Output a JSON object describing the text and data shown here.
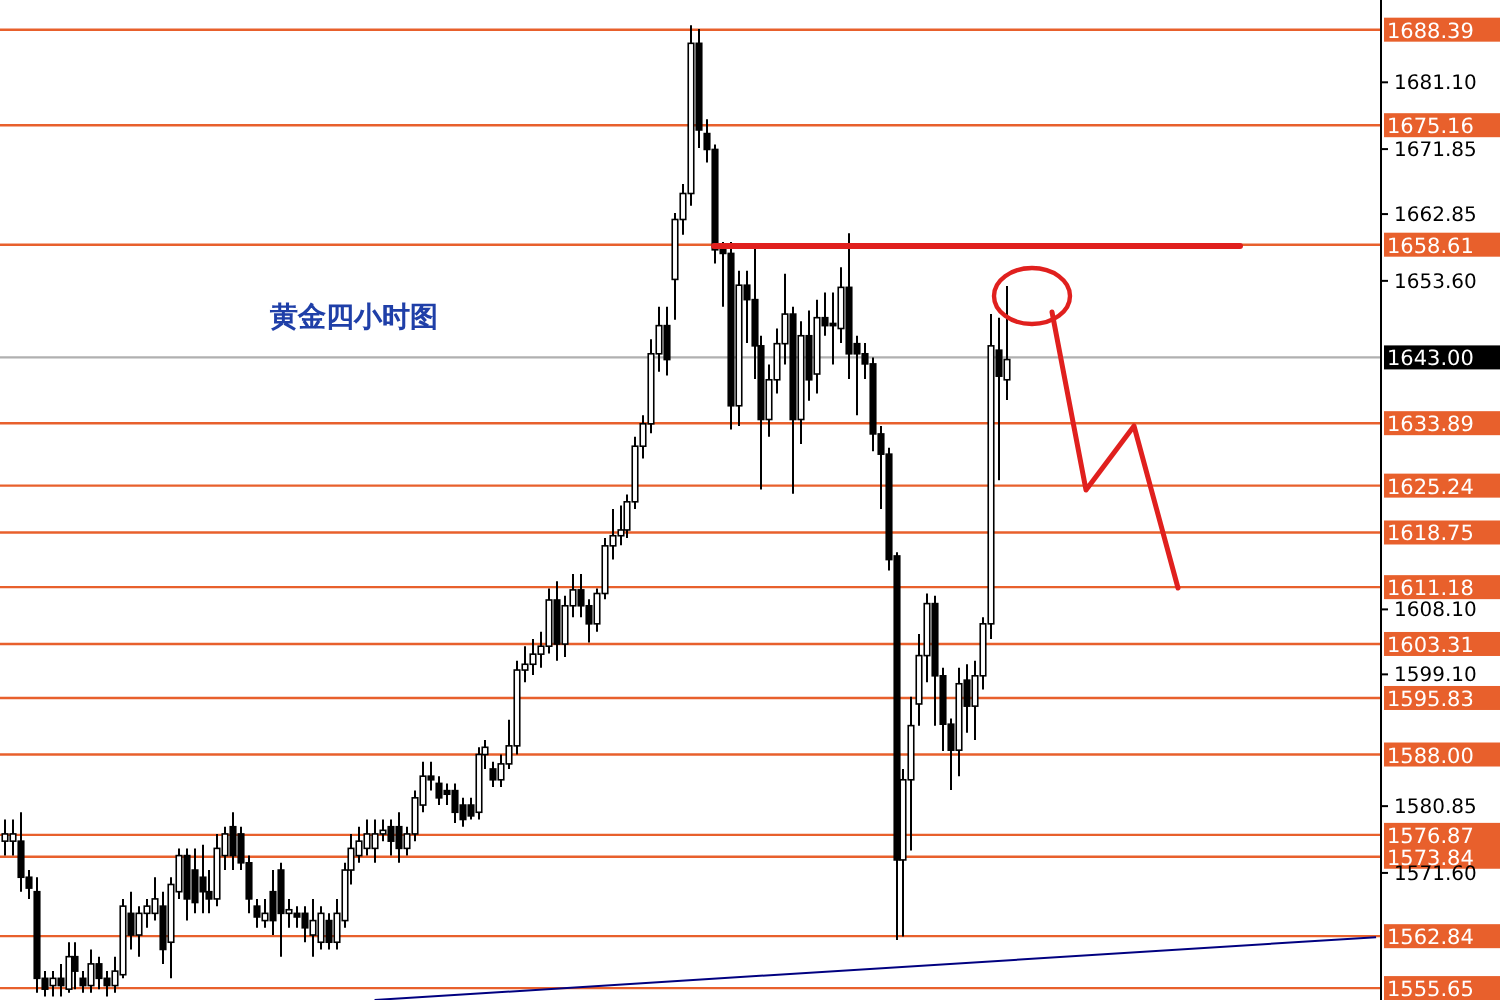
{
  "chart_data": {
    "type": "candlestick",
    "title": "黄金四小时图",
    "color": "#000000",
    "tick_labels": "y",
    "categories": [
      null,
      null,
      null,
      null,
      null,
      null,
      null,
      null,
      null,
      null,
      null,
      null,
      null,
      null,
      null,
      null,
      null,
      null,
      null,
      null,
      null,
      null,
      null,
      null,
      null,
      null,
      null,
      null,
      null,
      null,
      null,
      null,
      null,
      null,
      null,
      null,
      null,
      null,
      null,
      null,
      null,
      null,
      null,
      null,
      null,
      null,
      null,
      null,
      null,
      null,
      null,
      null,
      null,
      null,
      null,
      null,
      null,
      null,
      null,
      null,
      null,
      null,
      null,
      null,
      null,
      null,
      null,
      null,
      null,
      null,
      null,
      null,
      null,
      null,
      null,
      null,
      null,
      null,
      null,
      null,
      null,
      null,
      null,
      null,
      null,
      null,
      null,
      null,
      null,
      null,
      null,
      null,
      null,
      null,
      null,
      null,
      null,
      null,
      null,
      null,
      null,
      null,
      null,
      null,
      null,
      null,
      null,
      null,
      null,
      null,
      null,
      null,
      null,
      null,
      null,
      null,
      null,
      null,
      null,
      null,
      null,
      null,
      null,
      null,
      null,
      null,
      null,
      null,
      null,
      null,
      null,
      null,
      null,
      null,
      null,
      null,
      null,
      null,
      null,
      null,
      null,
      null,
      null,
      null,
      null,
      null,
      null,
      null,
      null,
      null,
      null,
      null,
      null,
      null,
      null,
      null,
      null,
      null,
      null,
      null,
      null,
      null,
      null,
      null,
      null,
      null,
      null,
      null,
      null,
      null,
      null,
      null,
      null,
      null,
      null
    ],
    "ohlc": [
      [
        1576,
        1579,
        1574,
        1577
      ],
      [
        1576,
        1579,
        1574,
        1577
      ],
      [
        1576,
        1580,
        1569,
        1571
      ],
      [
        1571,
        1572,
        1568,
        1569.5
      ],
      [
        1569,
        1571,
        1555,
        1557
      ],
      [
        1557,
        1558,
        1554.5,
        1555.5
      ],
      [
        1556,
        1558,
        1554.5,
        1557
      ],
      [
        1557,
        1559,
        1554.5,
        1556
      ],
      [
        1555.5,
        1562,
        1555,
        1560
      ],
      [
        1560,
        1562,
        1555.5,
        1558
      ],
      [
        1557,
        1558,
        1555,
        1556
      ],
      [
        1556,
        1561,
        1555,
        1559
      ],
      [
        1559,
        1560,
        1555.5,
        1557
      ],
      [
        1557,
        1558,
        1554.5,
        1556
      ],
      [
        1556,
        1560,
        1555,
        1558
      ],
      [
        1557.5,
        1568,
        1557,
        1567
      ],
      [
        1566,
        1569,
        1561,
        1563
      ],
      [
        1563,
        1567,
        1560,
        1566
      ],
      [
        1566,
        1568,
        1564,
        1567
      ],
      [
        1566,
        1571,
        1565,
        1568
      ],
      [
        1567,
        1569,
        1559,
        1561
      ],
      [
        1562,
        1571,
        1557,
        1570
      ],
      [
        1569,
        1575,
        1568,
        1574
      ],
      [
        1574,
        1575,
        1565,
        1568
      ],
      [
        1572,
        1575,
        1566,
        1567.5
      ],
      [
        1571,
        1575.5,
        1566,
        1569
      ],
      [
        1569,
        1572,
        1566,
        1568
      ],
      [
        1568,
        1577,
        1567,
        1575
      ],
      [
        1574,
        1578,
        1572,
        1577
      ],
      [
        1578,
        1580,
        1572,
        1574
      ],
      [
        1577,
        1578,
        1572,
        1573
      ],
      [
        1573,
        1574,
        1566,
        1568
      ],
      [
        1567,
        1568,
        1564,
        1565.5
      ],
      [
        1565,
        1568,
        1564,
        1566
      ],
      [
        1569,
        1572,
        1563,
        1565
      ],
      [
        1572,
        1573,
        1560,
        1566
      ],
      [
        1566,
        1568,
        1564,
        1566.5
      ],
      [
        1566,
        1567,
        1564,
        1565.5
      ],
      [
        1566,
        1567,
        1562,
        1564
      ],
      [
        1563,
        1568,
        1560,
        1565
      ],
      [
        1562,
        1567,
        1561,
        1566
      ],
      [
        1565,
        1566,
        1561,
        1562
      ],
      [
        1562,
        1568,
        1561,
        1566
      ],
      [
        1565,
        1573,
        1564,
        1572
      ],
      [
        1572,
        1577,
        1570,
        1575
      ],
      [
        1574,
        1578,
        1573,
        1576
      ],
      [
        1575,
        1579,
        1574,
        1577
      ],
      [
        1575,
        1579,
        1573,
        1577
      ],
      [
        1577,
        1579,
        1576,
        1577.5
      ],
      [
        1578,
        1579,
        1574,
        1576
      ],
      [
        1578,
        1580,
        1573,
        1575
      ],
      [
        1575,
        1578,
        1574,
        1577
      ],
      [
        1577,
        1583,
        1576,
        1582
      ],
      [
        1581,
        1587,
        1580,
        1585
      ],
      [
        1585,
        1587,
        1583,
        1584.5
      ],
      [
        1584,
        1585,
        1581,
        1582
      ],
      [
        1583,
        1584,
        1581,
        1582.5
      ],
      [
        1583,
        1584,
        1578.5,
        1580
      ],
      [
        1581,
        1582,
        1578,
        1579
      ],
      [
        1581,
        1582,
        1579,
        1579.5
      ],
      [
        1580,
        1589,
        1579,
        1588
      ],
      [
        1588,
        1590,
        1586,
        1589
      ],
      [
        1586,
        1587,
        1583.5,
        1584.5
      ],
      [
        1584.5,
        1588,
        1583.5,
        1586.7
      ],
      [
        1586.7,
        1592.8,
        1586,
        1589.2
      ],
      [
        1589.2,
        1601,
        1588,
        1599.7
      ],
      [
        1599.7,
        1603,
        1598,
        1600.5
      ],
      [
        1600.5,
        1604,
        1599,
        1601.9
      ],
      [
        1601.9,
        1605,
        1600,
        1603
      ],
      [
        1603,
        1611,
        1602,
        1609.4
      ],
      [
        1609.4,
        1612,
        1601,
        1603.3
      ],
      [
        1603.3,
        1610,
        1601.5,
        1608.6
      ],
      [
        1608.6,
        1613,
        1607,
        1610.8
      ],
      [
        1610.8,
        1613,
        1607,
        1608.6
      ],
      [
        1608.6,
        1609.5,
        1603.5,
        1606.1
      ],
      [
        1606.1,
        1611,
        1605,
        1610.3
      ],
      [
        1610.3,
        1618,
        1609.5,
        1616.9
      ],
      [
        1616.9,
        1622,
        1615,
        1618.3
      ],
      [
        1618.3,
        1622.5,
        1617,
        1619.1
      ],
      [
        1619.1,
        1624,
        1618,
        1623
      ],
      [
        1623,
        1632,
        1622,
        1630.7
      ],
      [
        1630.7,
        1635,
        1629,
        1633.8
      ],
      [
        1633.8,
        1645.5,
        1632.5,
        1643.5
      ],
      [
        1643.5,
        1650,
        1641,
        1647.4
      ],
      [
        1647.4,
        1650,
        1640.5,
        1642.7
      ],
      [
        1653.8,
        1663,
        1648.2,
        1662.1
      ],
      [
        1662.1,
        1667,
        1660,
        1665.7
      ],
      [
        1665.7,
        1689,
        1664,
        1686.5
      ],
      [
        1686.5,
        1688.5,
        1672,
        1674.5
      ],
      [
        1674,
        1676,
        1670,
        1671.8
      ],
      [
        1671.8,
        1672.5,
        1656,
        1657.9
      ],
      [
        1658.6,
        1659,
        1650,
        1657.4
      ],
      [
        1657.4,
        1659,
        1633,
        1636.3
      ],
      [
        1636.3,
        1655,
        1633.5,
        1653
      ],
      [
        1653,
        1655,
        1645,
        1651
      ],
      [
        1651,
        1658,
        1640,
        1644.6
      ],
      [
        1644.6,
        1646,
        1624.7,
        1634.4
      ],
      [
        1634.4,
        1642,
        1632,
        1639.9
      ],
      [
        1639.9,
        1647,
        1638,
        1644.9
      ],
      [
        1644.9,
        1654.6,
        1642,
        1649
      ],
      [
        1649,
        1650,
        1624.1,
        1634.4
      ],
      [
        1634.4,
        1648,
        1631,
        1646
      ],
      [
        1646,
        1649.5,
        1637,
        1639.9
      ],
      [
        1640.7,
        1651,
        1638,
        1648.5
      ],
      [
        1648.5,
        1652,
        1646,
        1647.4
      ],
      [
        1647.7,
        1652,
        1642,
        1647.4
      ],
      [
        1647,
        1655.5,
        1645,
        1652.7
      ],
      [
        1652.7,
        1660.2,
        1640,
        1643.5
      ],
      [
        1644.9,
        1646,
        1635,
        1643.5
      ],
      [
        1643.5,
        1645,
        1640,
        1642.1
      ],
      [
        1642.1,
        1643,
        1630,
        1632.4
      ],
      [
        1632.4,
        1633.5,
        1622,
        1629.6
      ],
      [
        1629.6,
        1630.5,
        1613.5,
        1615
      ],
      [
        1615.5,
        1616,
        1562.3,
        1573.4
      ],
      [
        1573.4,
        1586,
        1562.8,
        1584.5
      ],
      [
        1584.5,
        1596,
        1574.7,
        1592
      ],
      [
        1595,
        1604.7,
        1592,
        1601.7
      ],
      [
        1601.7,
        1610.3,
        1598,
        1608.9
      ],
      [
        1608.9,
        1610,
        1592,
        1598.9
      ],
      [
        1598.9,
        1600,
        1588.5,
        1592.2
      ],
      [
        1592.2,
        1593,
        1583.1,
        1588.6
      ],
      [
        1588.6,
        1600,
        1585,
        1597.8
      ],
      [
        1598.3,
        1600.5,
        1591,
        1594.7
      ],
      [
        1594.7,
        1601,
        1590,
        1598.9
      ],
      [
        1598.9,
        1607,
        1597,
        1606.1
      ],
      [
        1606.1,
        1649,
        1604,
        1644.6
      ],
      [
        1644,
        1648.5,
        1626,
        1640.4
      ],
      [
        1639.9,
        1652.9,
        1637.1,
        1642.7
      ],
      null,
      null,
      null,
      null,
      null,
      null,
      null,
      null,
      null,
      null,
      null,
      null,
      null,
      null,
      null,
      null,
      null,
      null,
      null,
      null,
      null,
      null,
      null,
      null,
      null,
      null,
      null,
      null,
      null,
      null,
      null,
      null,
      null,
      null,
      null,
      null,
      null,
      null,
      null,
      null,
      null,
      null,
      null,
      null,
      null,
      null,
      null
    ],
    "series": [
      {
        "type": "line",
        "color": "#000080",
        "values": [
          null,
          null,
          null,
          null,
          null,
          null,
          null,
          null,
          null,
          null,
          null,
          null,
          null,
          null,
          null,
          null,
          null,
          null,
          null,
          null,
          null,
          null,
          null,
          null,
          null,
          null,
          null,
          null,
          null,
          null,
          null,
          null,
          null,
          null,
          null,
          null,
          null,
          null,
          null,
          null,
          null,
          null,
          null,
          null,
          null,
          null,
          null,
          1554,
          null,
          null,
          null,
          null,
          null,
          null,
          null,
          null,
          null,
          null,
          null,
          null,
          null,
          null,
          null,
          null,
          null,
          null,
          null,
          null,
          null,
          null,
          null,
          null,
          null,
          null,
          null,
          null,
          null,
          null,
          null,
          null,
          null,
          null,
          null,
          null,
          null,
          null,
          null,
          null,
          null,
          null,
          null,
          null,
          null,
          null,
          null,
          null,
          null,
          null,
          null,
          null,
          null,
          null,
          null,
          null,
          null,
          null,
          null,
          null,
          null,
          null,
          null,
          null,
          null,
          null,
          null,
          null,
          null,
          null,
          null,
          null,
          null,
          null,
          null,
          null,
          null,
          null,
          null,
          null,
          null,
          null,
          null,
          null,
          null,
          null,
          null,
          null,
          null,
          null,
          null,
          null,
          null,
          null,
          null,
          null,
          null,
          null,
          null,
          null,
          null,
          null,
          null,
          null,
          null,
          null,
          null,
          null,
          null,
          null,
          null,
          null,
          null,
          null,
          null,
          null,
          null,
          null,
          null,
          null,
          null,
          null,
          null,
          null,
          null,
          null,
          1562.7
        ]
      }
    ],
    "ylim": [
      1554,
      1692.5
    ],
    "yticks": [
      {
        "value": 1681.1,
        "label": "1681.10"
      },
      {
        "value": 1671.85,
        "label": "1671.85"
      },
      {
        "value": 1662.85,
        "label": "1662.85"
      },
      {
        "value": 1653.6,
        "label": "1653.60"
      },
      {
        "value": 1608.1,
        "label": "1608.10"
      },
      {
        "value": 1599.1,
        "label": "1599.10"
      },
      {
        "value": 1580.85,
        "label": "1580.85"
      },
      {
        "value": 1571.6,
        "label": "1571.60"
      }
    ],
    "ref_lines": [
      {
        "axis": "y",
        "value": 1688.39,
        "label": "1688.39",
        "color": "#e8602c"
      },
      {
        "axis": "y",
        "value": 1675.16,
        "label": "1675.16",
        "color": "#e8602c"
      },
      {
        "axis": "y",
        "value": 1658.61,
        "label": "1658.61",
        "color": "#e8602c"
      },
      {
        "axis": "y",
        "value": 1643.0,
        "label": "1643.00",
        "color": "#b0b0b0"
      },
      {
        "axis": "y",
        "value": 1633.89,
        "label": "1633.89",
        "color": "#e8602c"
      },
      {
        "axis": "y",
        "value": 1625.24,
        "label": "1625.24",
        "color": "#e8602c"
      },
      {
        "axis": "y",
        "value": 1618.75,
        "label": "1618.75",
        "color": "#e8602c"
      },
      {
        "axis": "y",
        "value": 1611.18,
        "label": "1611.18",
        "color": "#e8602c"
      },
      {
        "axis": "y",
        "value": 1603.31,
        "label": "1603.31",
        "color": "#e8602c"
      },
      {
        "axis": "y",
        "value": 1595.83,
        "label": "1595.83",
        "color": "#e8602c"
      },
      {
        "axis": "y",
        "value": 1588.0,
        "label": "1588.00",
        "color": "#e8602c"
      },
      {
        "axis": "y",
        "value": 1576.87,
        "label": "1576.87",
        "color": "#e8602c"
      },
      {
        "axis": "y",
        "value": 1573.84,
        "label": "1573.84",
        "color": "#e8602c"
      },
      {
        "axis": "y",
        "value": 1562.84,
        "label": "1562.84",
        "color": "#e8602c"
      },
      {
        "axis": "y",
        "value": 1555.65,
        "label": "1555.65",
        "color": "#e8602c"
      }
    ]
  }
}
